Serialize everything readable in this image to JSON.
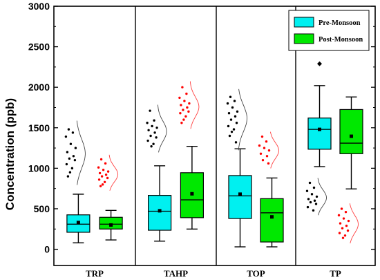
{
  "chart_data": {
    "type": "box",
    "ylabel": "Concentration (ppb)",
    "ylim": [
      -200,
      3000
    ],
    "yticks": [
      0,
      500,
      1000,
      1500,
      2000,
      2500,
      3000
    ],
    "categories": [
      "TRP",
      "TAHP",
      "TOP",
      "TP"
    ],
    "legend": {
      "position": "top-right",
      "entries": [
        {
          "label": "Pre-Monsoon",
          "color": "#00f0f0"
        },
        {
          "label": "Post-Monsoon",
          "color": "#00e800"
        }
      ]
    },
    "series": [
      {
        "name": "Pre-Monsoon",
        "color": "#00f0f0",
        "point_color": "#000000",
        "boxes": [
          {
            "category": "TRP",
            "min": 80,
            "q1": 210,
            "median": 310,
            "q3": 425,
            "max": 680,
            "mean": 330,
            "outliers": [],
            "points": [
              1480,
              1440,
              1390,
              1300,
              1250,
              1200,
              1150,
              1120,
              1100,
              1050,
              1000,
              950,
              900
            ]
          },
          {
            "category": "TAHP",
            "min": 100,
            "q1": 235,
            "median": 470,
            "q3": 665,
            "max": 1030,
            "mean": 475,
            "outliers": [],
            "points": [
              1710,
              1590,
              1560,
              1520,
              1500,
              1470,
              1440,
              1400,
              1380,
              1340,
              1300,
              1270
            ]
          },
          {
            "category": "TOP",
            "min": 30,
            "q1": 380,
            "median": 660,
            "q3": 910,
            "max": 1240,
            "mean": 680,
            "outliers": [],
            "points": [
              1880,
              1830,
              1800,
              1750,
              1700,
              1680,
              1640,
              1600,
              1560,
              1520,
              1480,
              1450,
              1400,
              1320
            ]
          },
          {
            "category": "TP",
            "min": 1020,
            "q1": 1235,
            "median": 1480,
            "q3": 1620,
            "max": 2020,
            "mean": 1480,
            "outliers": [
              2290
            ],
            "points": [
              820,
              760,
              720,
              680,
              650,
              620,
              600,
              580,
              560,
              520,
              480
            ]
          }
        ]
      },
      {
        "name": "Post-Monsoon",
        "color": "#00e800",
        "point_color": "#ff0000",
        "boxes": [
          {
            "category": "TRP",
            "min": 115,
            "q1": 250,
            "median": 310,
            "q3": 395,
            "max": 480,
            "mean": 300,
            "outliers": [],
            "points": [
              1110,
              1060,
              1010,
              980,
              960,
              940,
              920,
              900,
              880,
              860,
              830,
              800,
              780
            ]
          },
          {
            "category": "TAHP",
            "min": 250,
            "q1": 390,
            "median": 610,
            "q3": 945,
            "max": 1270,
            "mean": 685,
            "outliers": [],
            "points": [
              2000,
              1920,
              1870,
              1830,
              1800,
              1780,
              1750,
              1720,
              1700,
              1680,
              1640,
              1600,
              1560
            ]
          },
          {
            "category": "TOP",
            "min": 30,
            "q1": 90,
            "median": 450,
            "q3": 625,
            "max": 880,
            "mean": 400,
            "outliers": [],
            "points": [
              1390,
              1330,
              1280,
              1250,
              1220,
              1180,
              1150,
              1100,
              1060
            ]
          },
          {
            "category": "TP",
            "min": 745,
            "q1": 1180,
            "median": 1310,
            "q3": 1725,
            "max": 1880,
            "mean": 1395,
            "outliers": [],
            "points": [
              500,
              460,
              420,
              380,
              350,
              320,
              290,
              260,
              230,
              200,
              170,
              140
            ]
          }
        ]
      }
    ]
  }
}
